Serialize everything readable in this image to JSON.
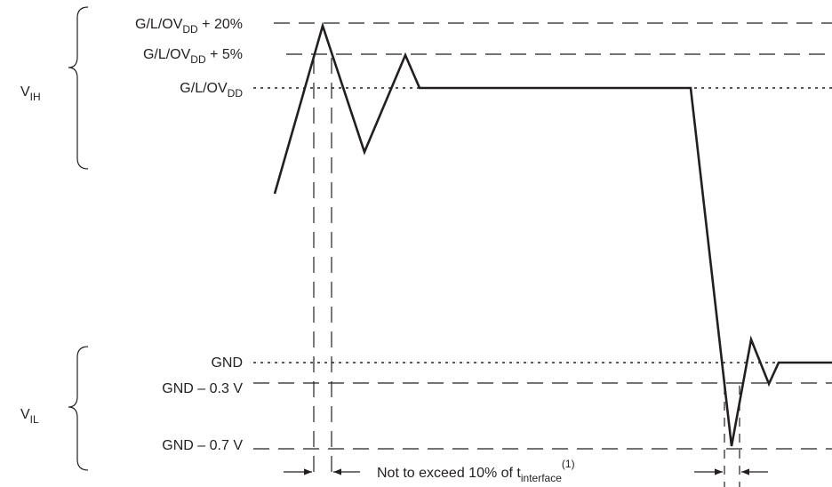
{
  "labels": {
    "vih": {
      "main": "V",
      "sub": "IH"
    },
    "vil": {
      "main": "V",
      "sub": "IL"
    },
    "plus20": {
      "pre": "G/L/OV",
      "sub": "DD",
      "post": " + 20%"
    },
    "plus5": {
      "pre": "G/L/OV",
      "sub": "DD",
      "post": " + 5%"
    },
    "nominal": {
      "pre": "G/L/OV",
      "sub": "DD",
      "post": ""
    },
    "gnd": "GND",
    "gnd_minus_03": "GND – 0.3 V",
    "gnd_minus_07": "GND – 0.7 V",
    "note": {
      "pre": "Not to exceed 10% of t",
      "sub": "interface",
      "sup": "(1)"
    }
  },
  "colors": {
    "line": "#231f20",
    "background": "#ffffff"
  }
}
